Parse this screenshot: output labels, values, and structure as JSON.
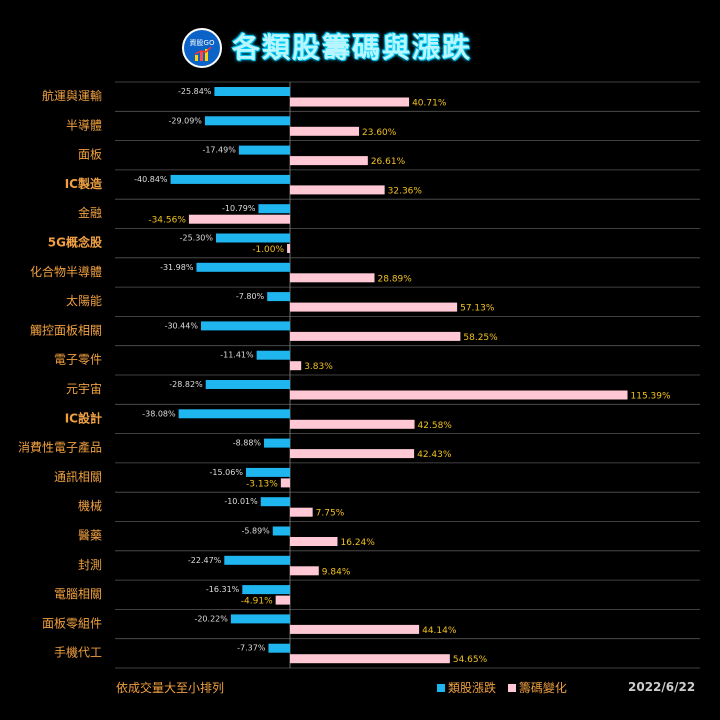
{
  "header": {
    "logo_text": "資股GO",
    "title": "各類股籌碼與漲跌"
  },
  "chart_data": {
    "type": "bar",
    "orientation": "horizontal",
    "categories": [
      "航運與運輸",
      "半導體",
      "面板",
      "IC製造",
      "金融",
      "5G概念股",
      "化合物半導體",
      "太陽能",
      "觸控面板相關",
      "電子零件",
      "元宇宙",
      "IC設計",
      "消費性電子產品",
      "通訊相關",
      "機械",
      "醫藥",
      "封測",
      "電腦相關",
      "面板零組件",
      "手機代工"
    ],
    "series": [
      {
        "name": "類股漲跌",
        "color": "#1fb6f0",
        "values": [
          -25.84,
          -29.09,
          -17.49,
          -40.84,
          -10.79,
          -25.3,
          -31.98,
          -7.8,
          -30.44,
          -11.41,
          -28.82,
          -38.08,
          -8.88,
          -15.06,
          -10.01,
          -5.89,
          -22.47,
          -16.31,
          -20.22,
          -7.37
        ]
      },
      {
        "name": "籌碼變化",
        "color": "#ffc8d4",
        "values": [
          40.71,
          23.6,
          26.61,
          32.36,
          -34.56,
          -1.0,
          28.89,
          57.13,
          58.25,
          3.83,
          115.39,
          42.58,
          42.43,
          -3.13,
          7.75,
          16.24,
          9.84,
          -4.91,
          44.14,
          54.65
        ]
      }
    ],
    "value_labels": {
      "類股漲跌": [
        "-25.84%",
        "-29.09%",
        "-17.49%",
        "-40.84%",
        "-10.79%",
        "-25.30%",
        "-31.98%",
        "-7.80%",
        "-30.44%",
        "-11.41%",
        "-28.82%",
        "-38.08%",
        "-8.88%",
        "-15.06%",
        "-10.01%",
        "-5.89%",
        "-22.47%",
        "-16.31%",
        "-20.22%",
        "-7.37%"
      ],
      "籌碼變化": [
        "40.71%",
        "23.60%",
        "26.61%",
        "32.36%",
        "-34.56%",
        "-1.00%",
        "28.89%",
        "57.13%",
        "58.25%",
        "3.83%",
        "115.39%",
        "42.58%",
        "42.43%",
        "-3.13%",
        "7.75%",
        "16.24%",
        "9.84%",
        "-4.91%",
        "44.14%",
        "54.65%"
      ]
    },
    "bold_categories": [
      "IC製造",
      "5G概念股",
      "IC設計"
    ],
    "grid": true,
    "legend_placement": "bottom-right"
  },
  "footer": {
    "note": "依成交量大至小排列",
    "legend": [
      "類股漲跌",
      "籌碼變化"
    ],
    "date": "2022/6/22"
  }
}
